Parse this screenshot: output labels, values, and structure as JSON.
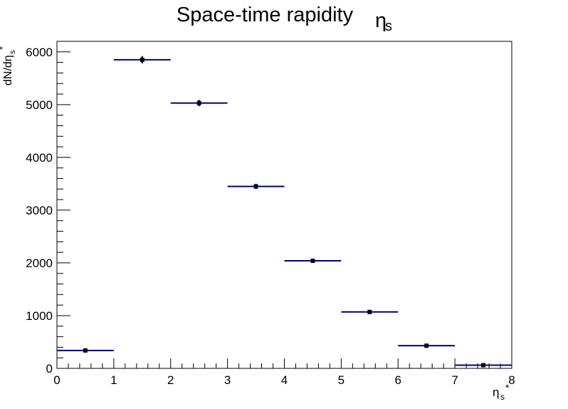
{
  "chart_data": {
    "type": "scatter",
    "style": "histogram-with-error-bars",
    "title": "Space-time rapidity",
    "title_symbol": "η",
    "title_symbol_sub": "s",
    "xlabel": "η",
    "xlabel_sub": "s",
    "xlabel_sup": "*",
    "ylabel": "dN/dη",
    "ylabel_sub": "s",
    "ylabel_sup": "*",
    "xlim": [
      0,
      8
    ],
    "ylim": [
      0,
      6200
    ],
    "x_ticks": [
      0,
      1,
      2,
      3,
      4,
      5,
      6,
      7,
      8
    ],
    "y_ticks": [
      0,
      1000,
      2000,
      3000,
      4000,
      5000,
      6000
    ],
    "bins": [
      {
        "x_low": 0,
        "x_high": 1,
        "x": 0.5,
        "y": 340,
        "err": 20
      },
      {
        "x_low": 1,
        "x_high": 2,
        "x": 1.5,
        "y": 5850,
        "err": 70
      },
      {
        "x_low": 2,
        "x_high": 3,
        "x": 2.5,
        "y": 5030,
        "err": 60
      },
      {
        "x_low": 3,
        "x_high": 4,
        "x": 3.5,
        "y": 3450,
        "err": 50
      },
      {
        "x_low": 4,
        "x_high": 5,
        "x": 4.5,
        "y": 2040,
        "err": 40
      },
      {
        "x_low": 5,
        "x_high": 6,
        "x": 5.5,
        "y": 1070,
        "err": 30
      },
      {
        "x_low": 6,
        "x_high": 7,
        "x": 6.5,
        "y": 430,
        "err": 20
      },
      {
        "x_low": 7,
        "x_high": 8,
        "x": 7.5,
        "y": 60,
        "err": 10
      }
    ],
    "grid": false,
    "legend": "none",
    "colors": {
      "line": "#000080",
      "marker": "#000000"
    }
  }
}
